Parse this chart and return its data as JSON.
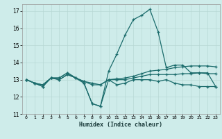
{
  "background_color": "#ceecea",
  "grid_color": "#b8d8d5",
  "line_color": "#1a6b6b",
  "xlabel": "Humidex (Indice chaleur)",
  "xlim": [
    -0.5,
    23.5
  ],
  "ylim": [
    11,
    17.4
  ],
  "yticks": [
    11,
    12,
    13,
    14,
    15,
    16,
    17
  ],
  "xticks": [
    0,
    1,
    2,
    3,
    4,
    5,
    6,
    7,
    8,
    9,
    10,
    11,
    12,
    13,
    14,
    15,
    16,
    17,
    18,
    19,
    20,
    21,
    22,
    23
  ],
  "series": [
    {
      "x": [
        0,
        1,
        2,
        3,
        4,
        5,
        6,
        7,
        8,
        9,
        10,
        11,
        12,
        13,
        14,
        15,
        16,
        17,
        18,
        19,
        20,
        21,
        22,
        23
      ],
      "y": [
        13.0,
        12.8,
        12.6,
        13.1,
        13.1,
        13.4,
        13.1,
        12.8,
        11.6,
        11.45,
        13.0,
        12.7,
        12.8,
        13.0,
        13.0,
        13.0,
        12.9,
        13.0,
        12.8,
        12.7,
        12.7,
        12.6,
        12.6,
        12.6
      ]
    },
    {
      "x": [
        0,
        1,
        2,
        3,
        4,
        5,
        6,
        7,
        8,
        9,
        10,
        11,
        12,
        13,
        14,
        15,
        16,
        17,
        18,
        19,
        20,
        21,
        22,
        23
      ],
      "y": [
        13.0,
        12.8,
        12.7,
        13.1,
        13.0,
        13.3,
        13.1,
        12.9,
        12.8,
        12.7,
        13.0,
        13.0,
        13.0,
        13.1,
        13.2,
        13.3,
        13.3,
        13.3,
        13.3,
        13.35,
        13.35,
        13.4,
        13.35,
        13.35
      ]
    },
    {
      "x": [
        0,
        1,
        2,
        3,
        4,
        5,
        6,
        7,
        8,
        9,
        10,
        11,
        12,
        13,
        14,
        15,
        16,
        17,
        18,
        19,
        20,
        21,
        22,
        23
      ],
      "y": [
        13.0,
        12.8,
        12.7,
        13.1,
        13.0,
        13.3,
        13.1,
        12.9,
        12.7,
        12.7,
        13.0,
        13.05,
        13.1,
        13.2,
        13.35,
        13.5,
        13.55,
        13.6,
        13.7,
        13.75,
        13.8,
        13.8,
        13.8,
        13.75
      ]
    },
    {
      "x": [
        0,
        1,
        2,
        3,
        4,
        5,
        6,
        7,
        8,
        9,
        10,
        11,
        12,
        13,
        14,
        15,
        16,
        17,
        18,
        19,
        20,
        21,
        22,
        23
      ],
      "y": [
        13.0,
        12.8,
        12.6,
        13.1,
        13.1,
        13.4,
        13.1,
        12.8,
        11.6,
        11.45,
        13.5,
        14.5,
        15.6,
        16.5,
        16.75,
        17.1,
        15.8,
        13.7,
        13.85,
        13.85,
        13.4,
        13.4,
        13.4,
        12.6
      ]
    }
  ]
}
